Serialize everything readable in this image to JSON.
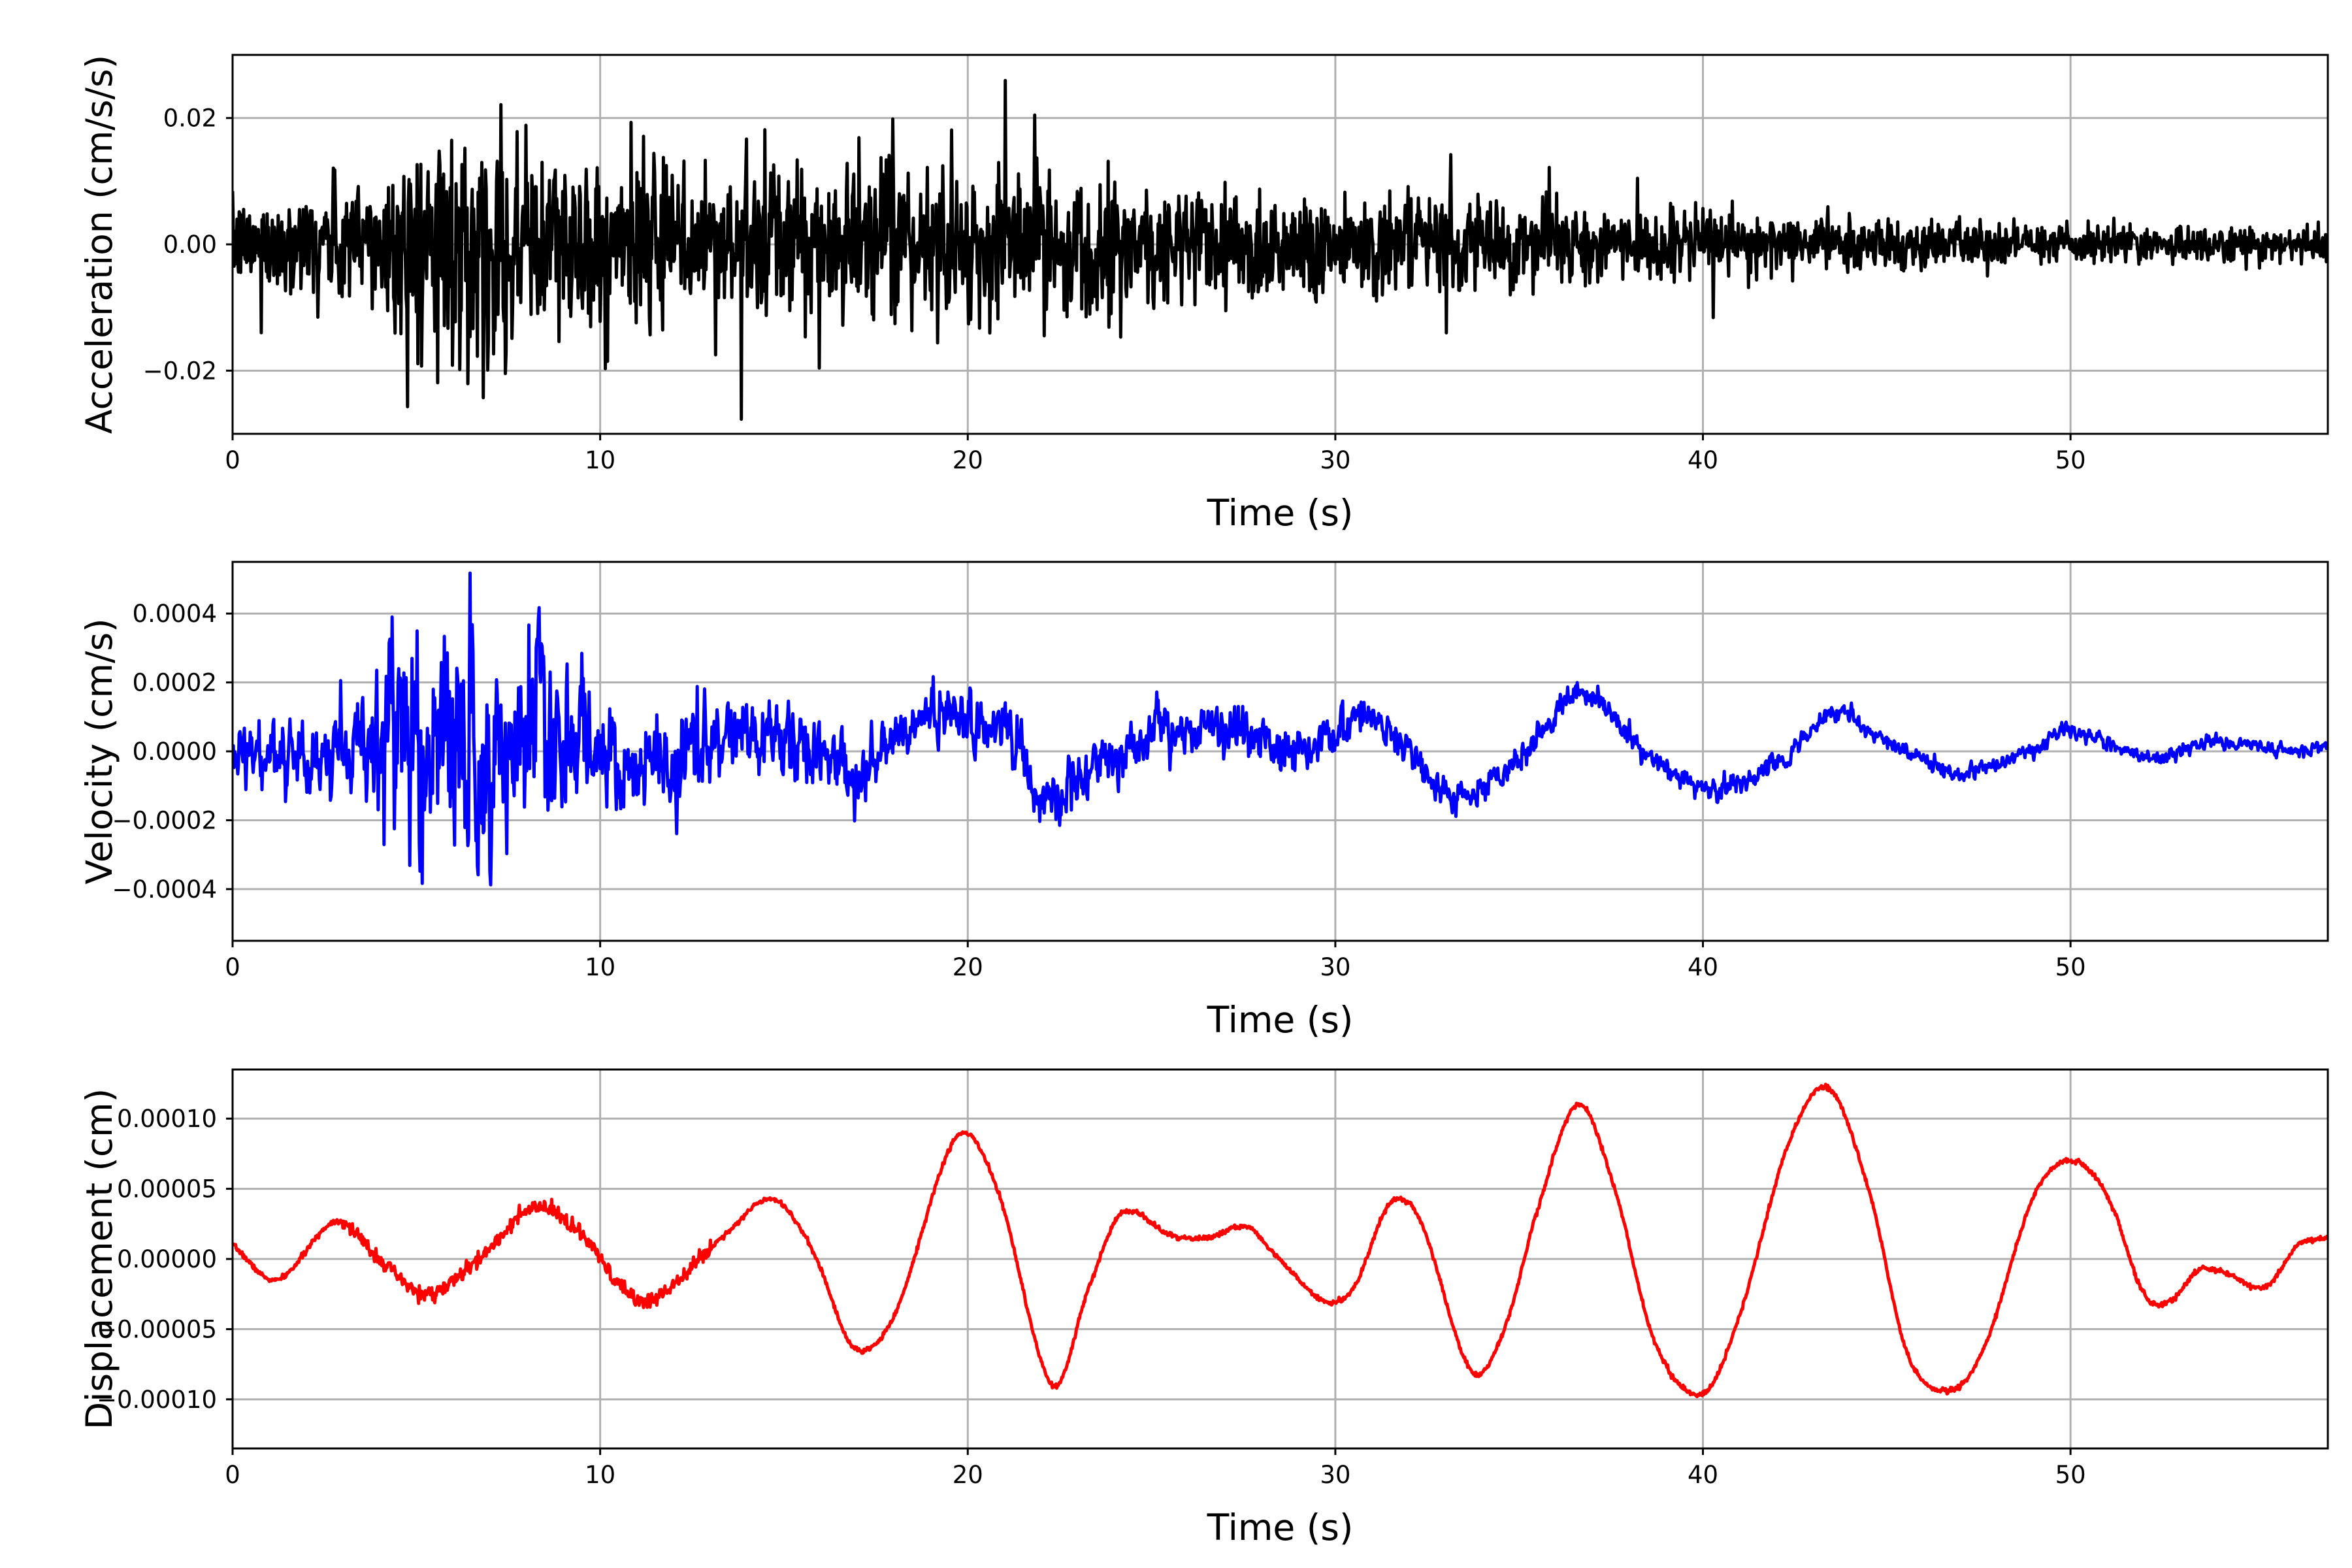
{
  "chart_data": [
    {
      "type": "line",
      "xlabel": "Time (s)",
      "ylabel": "Acceleration (cm/s/s)",
      "xlim": [
        0,
        57
      ],
      "ylim": [
        -0.03,
        0.03
      ],
      "xticks": [
        0,
        10,
        20,
        30,
        40,
        50
      ],
      "xtick_labels": [
        "0",
        "10",
        "20",
        "30",
        "40",
        "50"
      ],
      "yticks": [
        -0.02,
        0.0,
        0.02
      ],
      "ytick_labels": [
        "−0.02",
        "0.00",
        "0.02"
      ],
      "grid": true,
      "legend": "none",
      "series": [
        {
          "color": "#000000",
          "dt": 0.02,
          "envelope": {
            "x": [
              0,
              2,
              4,
              6,
              8,
              10,
              14,
              18,
              22,
              26,
              30,
              35,
              40,
              45,
              50,
              57
            ],
            "y": [
              0.008,
              0.011,
              0.016,
              0.024,
              0.021,
              0.017,
              0.016,
              0.015,
              0.015,
              0.013,
              0.011,
              0.0085,
              0.0065,
              0.005,
              0.004,
              0.0035
            ]
          }
        }
      ]
    },
    {
      "type": "line",
      "xlabel": "Time (s)",
      "ylabel": "Velocity (cm/s)",
      "xlim": [
        0,
        57
      ],
      "ylim": [
        -0.00055,
        0.00055
      ],
      "xticks": [
        0,
        10,
        20,
        30,
        40,
        50
      ],
      "xtick_labels": [
        "0",
        "10",
        "20",
        "30",
        "40",
        "50"
      ],
      "yticks": [
        -0.0004,
        -0.0002,
        0.0,
        0.0002,
        0.0004
      ],
      "ytick_labels": [
        "−0.0004",
        "−0.0002",
        "0.0000",
        "0.0002",
        "0.0004"
      ],
      "grid": true,
      "legend": "none",
      "series": [
        {
          "color": "#0000ff",
          "dt": 0.02,
          "trend": {
            "x": [
              0,
              2,
              4,
              6,
              8,
              10,
              12,
              14,
              16,
              17,
              19,
              21,
              22.2,
              24,
              27,
              29,
              31,
              33.3,
              35,
              36.7,
              38,
              40,
              42,
              43.5,
              45,
              47,
              49,
              50,
              52,
              54,
              56,
              57
            ],
            "y": [
              0.0,
              -2e-05,
              1e-05,
              0.0,
              2e-05,
              -1e-05,
              -4e-05,
              5e-05,
              -2e-05,
              -6e-05,
              0.0001,
              6e-05,
              -0.00015,
              0.0,
              7e-05,
              0.0,
              9e-05,
              -0.00013,
              -2e-05,
              0.00017,
              4e-05,
              -0.0001,
              -4e-05,
              0.00011,
              3e-05,
              -6e-05,
              0.0,
              6e-05,
              -2e-05,
              3e-05,
              0.0,
              2e-05
            ]
          },
          "noise_envelope": {
            "x": [
              0,
              3,
              4.5,
              6,
              8,
              10,
              14,
              18,
              22,
              26,
              30,
              35,
              40,
              45,
              50,
              57
            ],
            "y": [
              7e-05,
              9e-05,
              0.00023,
              0.00028,
              0.00023,
              0.00015,
              8e-05,
              7e-05,
              7e-05,
              6e-05,
              5e-05,
              3e-05,
              2.5e-05,
              2e-05,
              1.8e-05,
              1.5e-05
            ]
          }
        }
      ]
    },
    {
      "type": "line",
      "xlabel": "Time (s)",
      "ylabel": "Displacement (cm)",
      "xlim": [
        0,
        57
      ],
      "ylim": [
        -0.000135,
        0.000135
      ],
      "xticks": [
        0,
        10,
        20,
        30,
        40,
        50
      ],
      "xtick_labels": [
        "0",
        "10",
        "20",
        "30",
        "40",
        "50"
      ],
      "yticks": [
        -0.0001,
        -5e-05,
        0.0,
        5e-05,
        0.0001
      ],
      "ytick_labels": [
        "−0.00010",
        "−0.00005",
        "0.00000",
        "0.00005",
        "0.00010"
      ],
      "grid": true,
      "legend": "none",
      "series": [
        {
          "color": "#ff0000",
          "x": [
            0,
            1.2,
            2.8,
            3.8,
            5.2,
            6.5,
            8.2,
            9.5,
            10.5,
            11.3,
            12.5,
            13.5,
            14.7,
            15.8,
            16.9,
            18,
            19.7,
            20.8,
            22.3,
            23.3,
            24.2,
            25.5,
            26.5,
            27.6,
            28.3,
            29.7,
            30.5,
            31.5,
            32.3,
            33.7,
            34.6,
            35.5,
            36.6,
            37.6,
            38.7,
            40,
            41,
            42.3,
            43.4,
            44.5,
            45.6,
            46.8,
            47.7,
            49,
            50,
            51,
            52,
            52.7,
            53.5,
            54.2,
            55.3,
            56.2,
            57
          ],
          "y": [
            1e-05,
            -1.5e-05,
            2.7e-05,
            5e-06,
            -2.5e-05,
            -5e-06,
            3.6e-05,
            1.7e-05,
            -1.8e-05,
            -3e-05,
            -5e-06,
            2e-05,
            4.3e-05,
            5e-06,
            -6.3e-05,
            -4e-05,
            8.7e-05,
            5e-05,
            -9e-05,
            -2e-05,
            3.3e-05,
            1.7e-05,
            1.5e-05,
            2.3e-05,
            5e-06,
            -3e-05,
            -2e-05,
            4e-05,
            2.8e-05,
            -8e-05,
            -5e-05,
            3.5e-05,
            0.00011,
            5e-05,
            -6e-05,
            -9.6e-05,
            -4e-05,
            8e-05,
            0.000122,
            5e-05,
            -7e-05,
            -9.3e-05,
            -6e-05,
            4.5e-05,
            7e-05,
            4.5e-05,
            -2.5e-05,
            -3e-05,
            -8e-06,
            -1e-05,
            -2e-05,
            1e-05,
            1.5e-05
          ]
        }
      ]
    }
  ]
}
